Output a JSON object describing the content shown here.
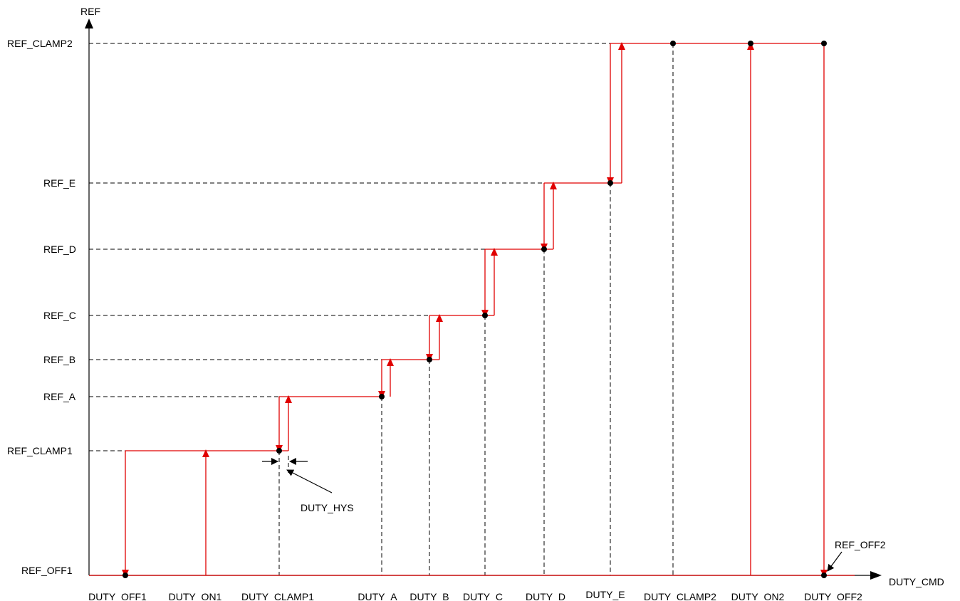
{
  "axes": {
    "y_label": "REF",
    "x_label": "DUTY_CMD"
  },
  "y_levels": [
    {
      "key": "REF_CLAMP2",
      "label": "REF_CLAMP2"
    },
    {
      "key": "REF_E",
      "label": "REF_E"
    },
    {
      "key": "REF_D",
      "label": "REF_D"
    },
    {
      "key": "REF_C",
      "label": "REF_C"
    },
    {
      "key": "REF_B",
      "label": "REF_B"
    },
    {
      "key": "REF_A",
      "label": "REF_A"
    },
    {
      "key": "REF_CLAMP1",
      "label": "REF_CLAMP1"
    },
    {
      "key": "REF_OFF1",
      "label": "REF_OFF1"
    }
  ],
  "x_points": [
    {
      "key": "DUTY_OFF1",
      "label": "DUTY_OFF1"
    },
    {
      "key": "DUTY_ON1",
      "label": "DUTY_ON1"
    },
    {
      "key": "DUTY_CLAMP1",
      "label": "DUTY_CLAMP1"
    },
    {
      "key": "DUTY_A",
      "label": "DUTY_A"
    },
    {
      "key": "DUTY_B",
      "label": "DUTY_B"
    },
    {
      "key": "DUTY_C",
      "label": "DUTY_C"
    },
    {
      "key": "DUTY_D",
      "label": "DUTY_D"
    },
    {
      "key": "DUTY_E",
      "label": "DUTY_E"
    },
    {
      "key": "DUTY_CLAMP2",
      "label": "DUTY_CLAMP2"
    },
    {
      "key": "DUTY_ON2",
      "label": "DUTY_ON2"
    },
    {
      "key": "DUTY_OFF2",
      "label": "DUTY_OFF2"
    }
  ],
  "annotations": {
    "hysteresis": "DUTY_HYS",
    "ref_off2": "REF_OFF2"
  },
  "colors": {
    "curve": "#e00000",
    "axes": "#000000"
  }
}
